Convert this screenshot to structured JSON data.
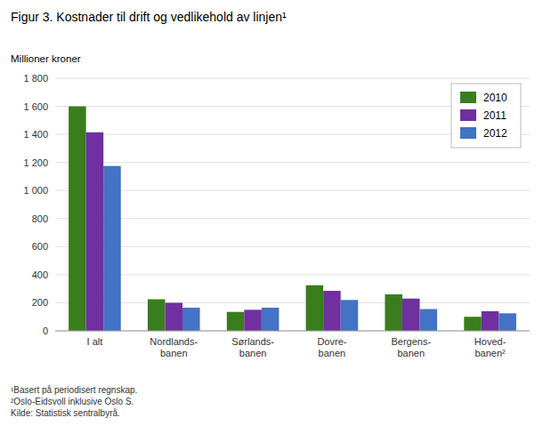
{
  "chart_data": {
    "type": "bar",
    "title": "Figur 3.  Kostnader til drift og vedlikehold av linjen¹",
    "y_label": "Millioner kroner",
    "categories": [
      "I alt",
      "Nordlands-\nbanen",
      "Sørlands-\nbanen",
      "Dovre-\nbanen",
      "Bergens-\nbanen",
      "Hoved-\nbanen²"
    ],
    "series": [
      {
        "name": "2010",
        "color": "#3a7d1e",
        "values": [
          1600,
          225,
          135,
          325,
          260,
          100
        ]
      },
      {
        "name": "2011",
        "color": "#7030a0",
        "values": [
          1415,
          200,
          150,
          285,
          230,
          140
        ]
      },
      {
        "name": "2012",
        "color": "#4472c4",
        "values": [
          1175,
          165,
          165,
          220,
          155,
          125
        ]
      }
    ],
    "ylim": [
      0,
      1800
    ],
    "yticks": [
      0,
      200,
      400,
      600,
      800,
      {
        "value": 1000,
        "label": "1 000"
      },
      {
        "value": 1200,
        "label": "1 200"
      },
      {
        "value": 1400,
        "label": "1 400"
      },
      {
        "value": 1600,
        "label": "1 600"
      },
      {
        "value": 1800,
        "label": "1 800"
      }
    ],
    "grid": true,
    "legend": "upper right",
    "annotations": [
      "¹Basert på periodisert regnskap.",
      "²Oslo-Eidsvoll inklusive Oslo S.",
      "Kilde: Statistisk sentralbyrå."
    ]
  }
}
